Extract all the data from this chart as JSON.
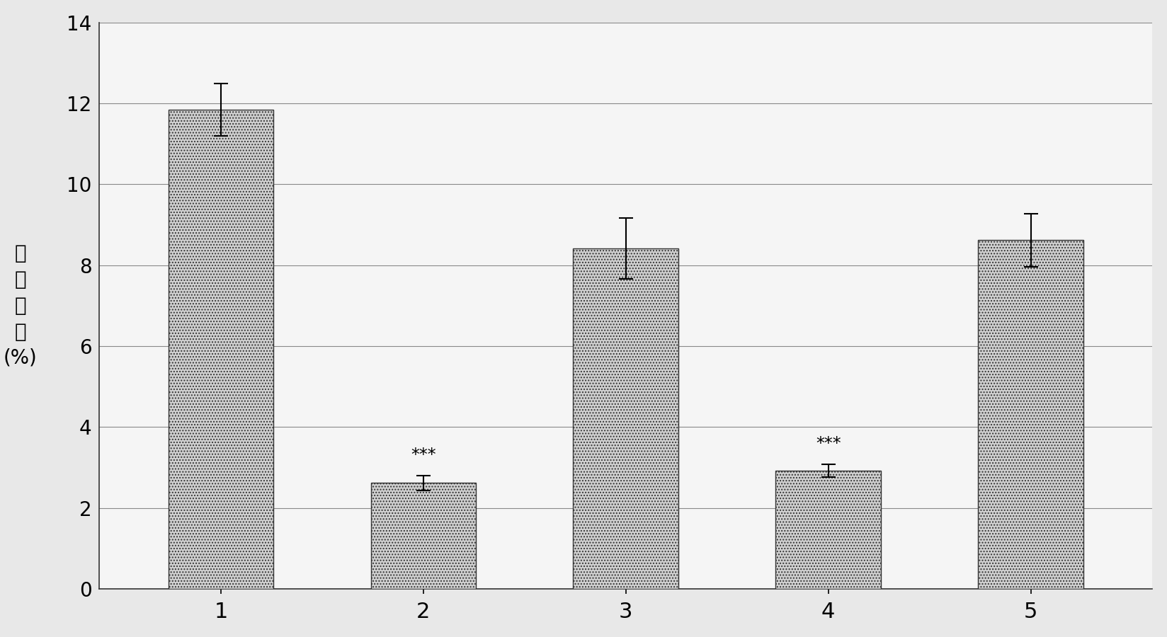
{
  "categories": [
    "1",
    "2",
    "3",
    "4",
    "5"
  ],
  "values": [
    11.85,
    2.62,
    8.42,
    2.92,
    8.62
  ],
  "errors": [
    0.65,
    0.18,
    0.75,
    0.16,
    0.65
  ],
  "sig_labels": [
    null,
    "***",
    null,
    "***",
    null
  ],
  "ylabel_lines": [
    "脑",
    "梗",
    "面",
    "积",
    "(%)"
  ],
  "bar_color": "#c8c8c8",
  "ylim": [
    0,
    14
  ],
  "yticks": [
    0,
    2,
    4,
    6,
    8,
    10,
    12,
    14
  ],
  "background_color": "#e8e8e8",
  "plot_bg_color": "#f5f5f5",
  "grid_color": "#aaaaaa",
  "bar_width": 0.52,
  "fig_width": 16.48,
  "fig_height": 9.0,
  "dpi": 100
}
